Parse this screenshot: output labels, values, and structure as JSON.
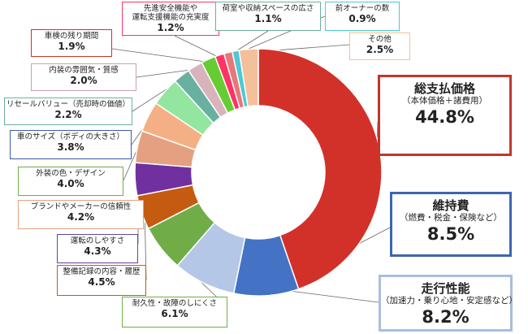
{
  "chart_data": {
    "type": "pie",
    "donut": true,
    "slices": [
      {
        "label": "総支払価格",
        "sublabel": "（本体価格＋諸費用）",
        "value": 44.8,
        "value_label": "44.8%",
        "color": "#d2312a",
        "border": "#c0372f"
      },
      {
        "label": "維持費",
        "sublabel": "（燃費・税金・保険など）",
        "value": 8.5,
        "value_label": "8.5%",
        "color": "#4472c4",
        "border": "#3d66b0"
      },
      {
        "label": "走行性能",
        "sublabel": "（加速力・乗り心地・安定感など）",
        "value": 8.2,
        "value_label": "8.2%",
        "color": "#b4c7e7",
        "border": "#a9bedc"
      },
      {
        "label": "耐久性・故障のしにくさ",
        "value": 6.1,
        "value_label": "6.1%",
        "color": "#70ad47",
        "border": "#70ad47"
      },
      {
        "label": "整備記録の内容・履歴",
        "value": 4.5,
        "value_label": "4.5%",
        "color": "#c55a11",
        "border": "#c55a11"
      },
      {
        "label": "運転のしやすさ",
        "value": 4.3,
        "value_label": "4.3%",
        "color": "#7030a0",
        "border": "#5b4a9b"
      },
      {
        "label": "ブランドやメーカーの信頼性",
        "value": 4.2,
        "value_label": "4.2%",
        "color": "#e4a080",
        "border": "#e4a080"
      },
      {
        "label": "外装の色・デザイン",
        "value": 4.0,
        "value_label": "4.0%",
        "color": "#f4b084",
        "border": "#70ad47"
      },
      {
        "label": "車のサイズ（ボディの大きさ）",
        "value": 3.8,
        "value_label": "3.8%",
        "color": "#92e6a0",
        "border": "#3e5aa8"
      },
      {
        "label": "リセールバリュー（売却時の価値）",
        "value": 2.2,
        "value_label": "2.2%",
        "color": "#6ab0a0",
        "border": "#6ab0a0"
      },
      {
        "label": "内装の雰囲気・質感",
        "value": 2.0,
        "value_label": "2.0%",
        "color": "#d9b3bc",
        "border": "#c9a2aa"
      },
      {
        "label": "車検の残り期間",
        "value": 1.9,
        "value_label": "1.9%",
        "color": "#66cc33",
        "border": "#d2312a"
      },
      {
        "label": "先進安全機能や運転支援機能の充実度",
        "label_lines": [
          "先進安全機能や",
          "運転支援機能の充実度"
        ],
        "value": 1.2,
        "value_label": "1.2%",
        "color": "#ff3366",
        "border": "#ff3366"
      },
      {
        "label": "荷室や収納スペースの広さ",
        "value": 1.1,
        "value_label": "1.1%",
        "color": "#e87878",
        "border": "#6ab0a0"
      },
      {
        "label": "前オーナーの数",
        "value": 0.9,
        "value_label": "0.9%",
        "color": "#4dc9d4",
        "border": "#4dc9d4"
      },
      {
        "label": "その他",
        "value": 2.5,
        "value_label": "2.5%",
        "color": "#f4c09c",
        "border": "#f4c09c"
      }
    ]
  }
}
